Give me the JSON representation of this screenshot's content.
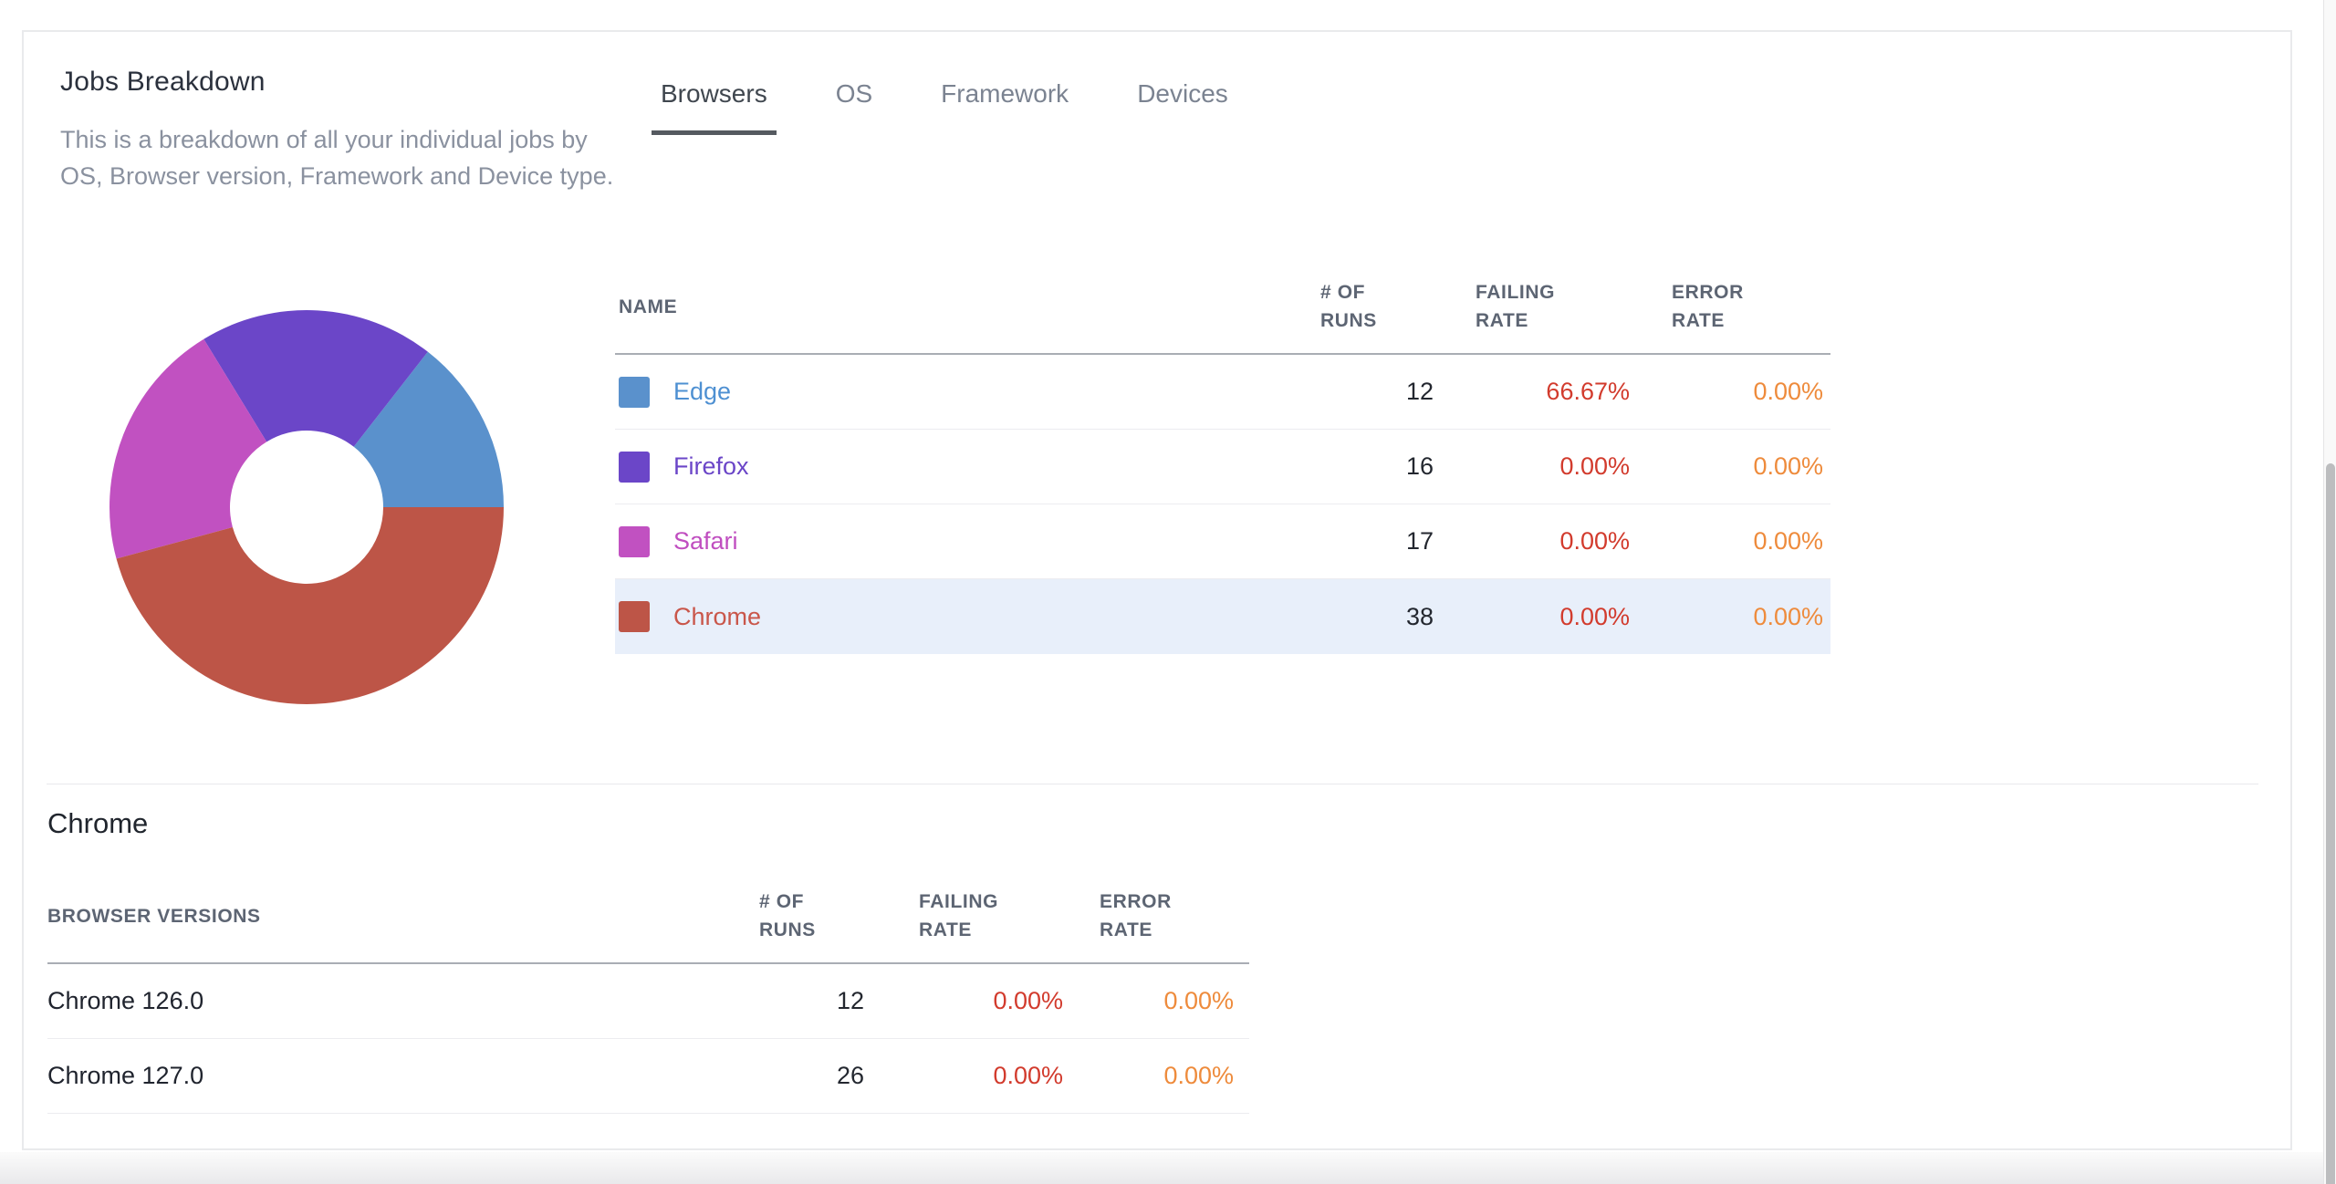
{
  "panel": {
    "title": "Jobs Breakdown",
    "description": "This is a breakdown of all your individual jobs by OS, Browser version, Framework and Device type."
  },
  "tabs": [
    {
      "label": "Browsers",
      "active": true
    },
    {
      "label": "OS",
      "active": false
    },
    {
      "label": "Framework",
      "active": false
    },
    {
      "label": "Devices",
      "active": false
    }
  ],
  "browsers_table": {
    "columns": {
      "name": "NAME",
      "runs": "# OF RUNS",
      "failing": "FAILING RATE",
      "error": "ERROR RATE"
    },
    "rows": [
      {
        "name": "Edge",
        "runs": "12",
        "failing": "66.67%",
        "error": "0.00%",
        "swatch": "#5a91cc",
        "text_color": "#4e90d2",
        "highlighted": false
      },
      {
        "name": "Firefox",
        "runs": "16",
        "failing": "0.00%",
        "error": "0.00%",
        "swatch": "#6b46c8",
        "text_color": "#6b46c8",
        "highlighted": false
      },
      {
        "name": "Safari",
        "runs": "17",
        "failing": "0.00%",
        "error": "0.00%",
        "swatch": "#c151c1",
        "text_color": "#c04ec0",
        "highlighted": false
      },
      {
        "name": "Chrome",
        "runs": "38",
        "failing": "0.00%",
        "error": "0.00%",
        "swatch": "#bd5547",
        "text_color": "#c9564a",
        "highlighted": true
      }
    ]
  },
  "detail": {
    "title": "Chrome",
    "columns": {
      "name": "BROWSER VERSIONS",
      "runs": "# OF RUNS",
      "failing": "FAILING RATE",
      "error": "ERROR RATE"
    },
    "rows": [
      {
        "name": "Chrome 126.0",
        "runs": "12",
        "failing": "0.00%",
        "error": "0.00%"
      },
      {
        "name": "Chrome 127.0",
        "runs": "26",
        "failing": "0.00%",
        "error": "0.00%"
      }
    ]
  },
  "chart_data": {
    "type": "pie",
    "title": "Browsers job breakdown donut",
    "categories": [
      "Edge",
      "Firefox",
      "Safari",
      "Chrome"
    ],
    "values": [
      12,
      16,
      17,
      38
    ],
    "colors": [
      "#5a91cc",
      "#6b46c8",
      "#c151c1",
      "#bd5547"
    ],
    "inner_radius_ratio": 0.39,
    "start_angle_deg": 0,
    "direction": "counterclockwise",
    "legend_position": "none"
  },
  "colors": {
    "failing_rate": "#d23b2d",
    "error_rate": "#ee8b3c",
    "row_highlight": "#e8effa",
    "tab_underline": "#555a60"
  }
}
